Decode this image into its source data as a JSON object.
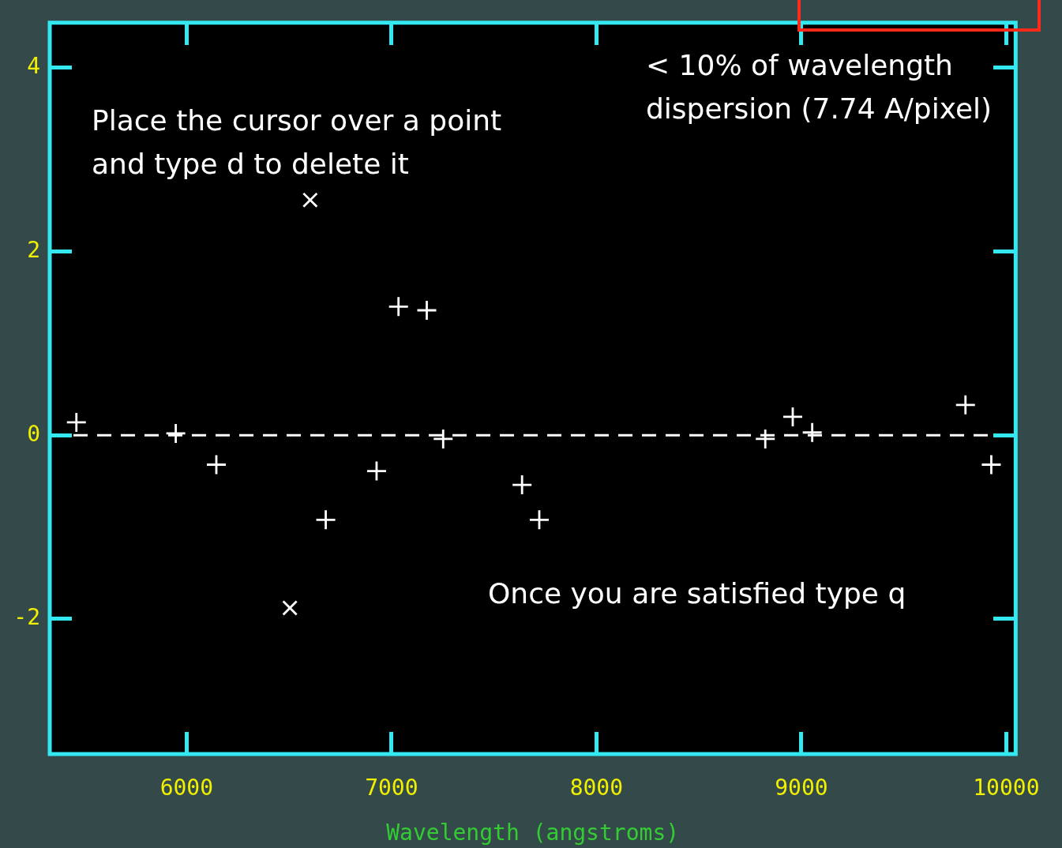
{
  "chart_data": {
    "type": "scatter",
    "xlabel": "Wavelength (angstroms)",
    "xlim": [
      5332,
      10046
    ],
    "xticks": [
      6000,
      7000,
      8000,
      9000,
      10000
    ],
    "ylim": [
      -3.47,
      4.49
    ],
    "yticks": [
      -2,
      0,
      2,
      4
    ],
    "grid": false,
    "legend": false,
    "marker": "cross",
    "series": [
      {
        "color": "#ffffff",
        "x": [
          5462,
          5947,
          6145,
          6679,
          6927,
          7034,
          7172,
          7252,
          7637,
          7721,
          8824,
          8958,
          9053,
          9801,
          9927
        ],
        "values": [
          0.14,
          0.02,
          -0.32,
          -0.92,
          -0.39,
          1.4,
          1.36,
          -0.04,
          -0.54,
          -0.92,
          -0.04,
          0.2,
          0.03,
          0.33,
          -0.32
        ]
      },
      {
        "color": "#ffffff",
        "marker": "x",
        "x": [
          6603,
          6504
        ],
        "values": [
          2.56,
          -1.88
        ]
      }
    ],
    "ref_lines": [
      {
        "axis": "y",
        "value": 0,
        "color": "#ffffff",
        "line_style": "dashed"
      }
    ],
    "annotations": [
      "< 10% of wavelength\ndispersion (7.74 A/pixel)",
      "Place the cursor over a point\nand type d to delete it",
      "Once you are satisfied type q"
    ]
  }
}
